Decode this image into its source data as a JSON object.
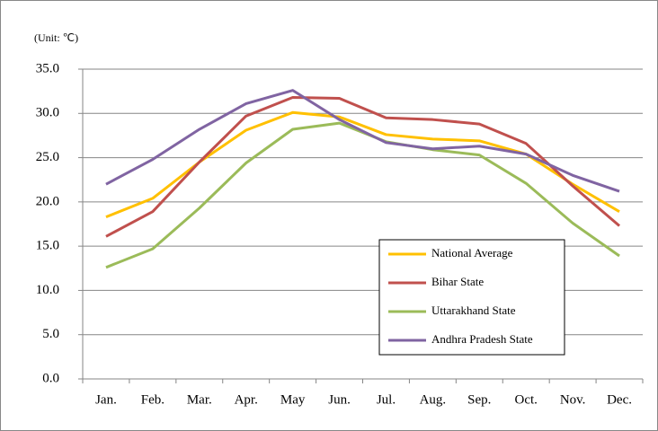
{
  "chart_data": {
    "type": "line",
    "unit_label": "(Unit: ℃)",
    "categories": [
      "Jan.",
      "Feb.",
      "Mar.",
      "Apr.",
      "May",
      "Jun.",
      "Jul.",
      "Aug.",
      "Sep.",
      "Oct.",
      "Nov.",
      "Dec."
    ],
    "series": [
      {
        "name": "National Average",
        "color": "#ffc000",
        "values": [
          18.3,
          20.4,
          24.5,
          28.1,
          30.1,
          29.6,
          27.6,
          27.1,
          26.9,
          25.4,
          22.0,
          18.9
        ]
      },
      {
        "name": "Bihar State",
        "color": "#c0504d",
        "values": [
          16.1,
          18.9,
          24.5,
          29.7,
          31.8,
          31.7,
          29.5,
          29.3,
          28.8,
          26.6,
          21.8,
          17.3
        ]
      },
      {
        "name": "Uttarakhand State",
        "color": "#9bbb59",
        "values": [
          12.6,
          14.7,
          19.3,
          24.4,
          28.2,
          28.9,
          26.8,
          25.9,
          25.3,
          22.1,
          17.6,
          13.9
        ]
      },
      {
        "name": "Andhra Pradesh State",
        "color": "#8064a2",
        "values": [
          22.0,
          24.8,
          28.2,
          31.1,
          32.6,
          29.3,
          26.7,
          26.0,
          26.3,
          25.4,
          23.0,
          21.2
        ]
      }
    ],
    "ylim": [
      0,
      35
    ],
    "yticks": [
      {
        "value": 0,
        "label": "0.0"
      },
      {
        "value": 5,
        "label": "5.0"
      },
      {
        "value": 10,
        "label": "10.0"
      },
      {
        "value": 15,
        "label": "15.0"
      },
      {
        "value": 20,
        "label": "20.0"
      },
      {
        "value": 25,
        "label": "25.0"
      },
      {
        "value": 30,
        "label": "30.0"
      },
      {
        "value": 35,
        "label": "35.0"
      }
    ],
    "grid": true,
    "legend": "lower-right"
  }
}
